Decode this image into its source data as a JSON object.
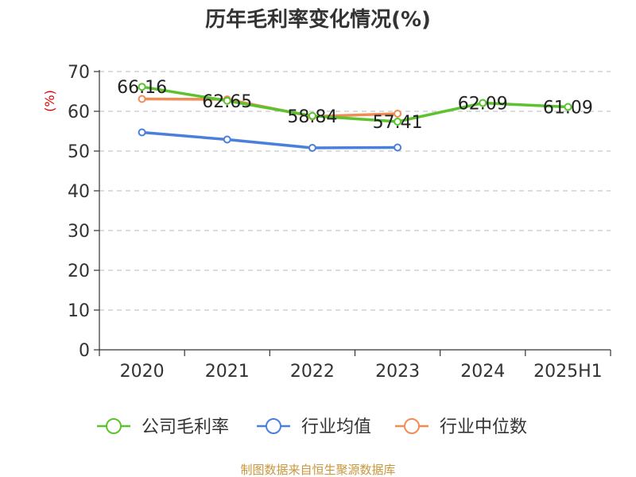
{
  "chart_data": {
    "type": "line",
    "title": "历年毛利率变化情况(%)",
    "ylabel": "(%)",
    "xlabel": "",
    "categories": [
      "2020",
      "2021",
      "2022",
      "2023",
      "2024",
      "2025H1"
    ],
    "ylim": [
      0,
      70
    ],
    "yticks": [
      0,
      10,
      20,
      30,
      40,
      50,
      60,
      70
    ],
    "grid": true,
    "legend_position": "bottom",
    "series": [
      {
        "name": "公司毛利率",
        "color": "#5cc22e",
        "values": [
          66.16,
          62.65,
          58.84,
          57.41,
          62.09,
          61.09
        ],
        "labels": [
          "66.16",
          "62.65",
          "58.84",
          "57.41",
          "62.09",
          "61.09"
        ]
      },
      {
        "name": "行业均值",
        "color": "#4a7fdc",
        "values": [
          54.7,
          52.9,
          50.8,
          50.9,
          null,
          null
        ]
      },
      {
        "name": "行业中位数",
        "color": "#f08c55",
        "values": [
          63.1,
          63.0,
          58.7,
          59.4,
          null,
          null
        ]
      }
    ]
  },
  "source": "制图数据来自恒生聚源数据库"
}
